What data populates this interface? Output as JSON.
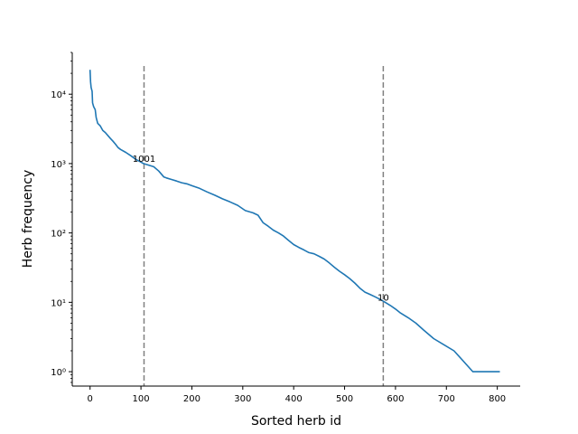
{
  "chart_data": {
    "type": "line",
    "title": "",
    "xlabel": "Sorted herb id",
    "ylabel": "Herb frequency",
    "xlim": [
      -35,
      845
    ],
    "ylim": [
      0.62,
      40000
    ],
    "y_scale": "log",
    "grid": false,
    "legend": "none",
    "x_ticks": [
      0,
      100,
      200,
      300,
      400,
      500,
      600,
      700,
      800
    ],
    "y_ticks": [
      {
        "value": 1,
        "label": "10⁰"
      },
      {
        "value": 10,
        "label": "10¹"
      },
      {
        "value": 100,
        "label": "10²"
      },
      {
        "value": 1000,
        "label": "10³"
      },
      {
        "value": 10000,
        "label": "10⁴"
      }
    ],
    "series": [
      {
        "color": "#1f77b4",
        "points": [
          [
            0,
            22500
          ],
          [
            1,
            15000
          ],
          [
            2,
            12500
          ],
          [
            4,
            11000
          ],
          [
            5,
            7500
          ],
          [
            7,
            6600
          ],
          [
            10,
            6000
          ],
          [
            12,
            4600
          ],
          [
            15,
            3800
          ],
          [
            20,
            3500
          ],
          [
            25,
            3000
          ],
          [
            30,
            2800
          ],
          [
            40,
            2300
          ],
          [
            45,
            2100
          ],
          [
            50,
            1900
          ],
          [
            55,
            1700
          ],
          [
            60,
            1600
          ],
          [
            70,
            1450
          ],
          [
            80,
            1300
          ],
          [
            90,
            1150
          ],
          [
            100,
            1050
          ],
          [
            105,
            1000
          ],
          [
            115,
            950
          ],
          [
            125,
            900
          ],
          [
            135,
            780
          ],
          [
            145,
            640
          ],
          [
            150,
            620
          ],
          [
            160,
            590
          ],
          [
            170,
            560
          ],
          [
            180,
            530
          ],
          [
            190,
            510
          ],
          [
            200,
            480
          ],
          [
            215,
            440
          ],
          [
            230,
            390
          ],
          [
            245,
            350
          ],
          [
            260,
            310
          ],
          [
            275,
            280
          ],
          [
            290,
            250
          ],
          [
            305,
            210
          ],
          [
            320,
            195
          ],
          [
            330,
            180
          ],
          [
            340,
            140
          ],
          [
            350,
            125
          ],
          [
            360,
            110
          ],
          [
            370,
            100
          ],
          [
            380,
            90
          ],
          [
            390,
            78
          ],
          [
            400,
            68
          ],
          [
            410,
            62
          ],
          [
            420,
            57
          ],
          [
            430,
            52
          ],
          [
            440,
            50
          ],
          [
            450,
            46
          ],
          [
            460,
            42
          ],
          [
            470,
            37
          ],
          [
            480,
            32
          ],
          [
            490,
            28
          ],
          [
            500,
            25
          ],
          [
            510,
            22
          ],
          [
            520,
            19
          ],
          [
            530,
            16
          ],
          [
            540,
            14
          ],
          [
            550,
            13
          ],
          [
            560,
            12
          ],
          [
            570,
            11
          ],
          [
            580,
            10
          ],
          [
            590,
            9
          ],
          [
            600,
            8
          ],
          [
            610,
            7
          ],
          [
            625,
            6
          ],
          [
            640,
            5
          ],
          [
            655,
            4
          ],
          [
            675,
            3
          ],
          [
            715,
            2
          ],
          [
            752,
            1
          ],
          [
            805,
            1
          ]
        ]
      }
    ],
    "vlines": [
      {
        "x": 106,
        "label": "1001",
        "label_y": 1200,
        "color": "#808080"
      },
      {
        "x": 576,
        "label": "10",
        "label_y": 12,
        "color": "#808080"
      }
    ]
  }
}
